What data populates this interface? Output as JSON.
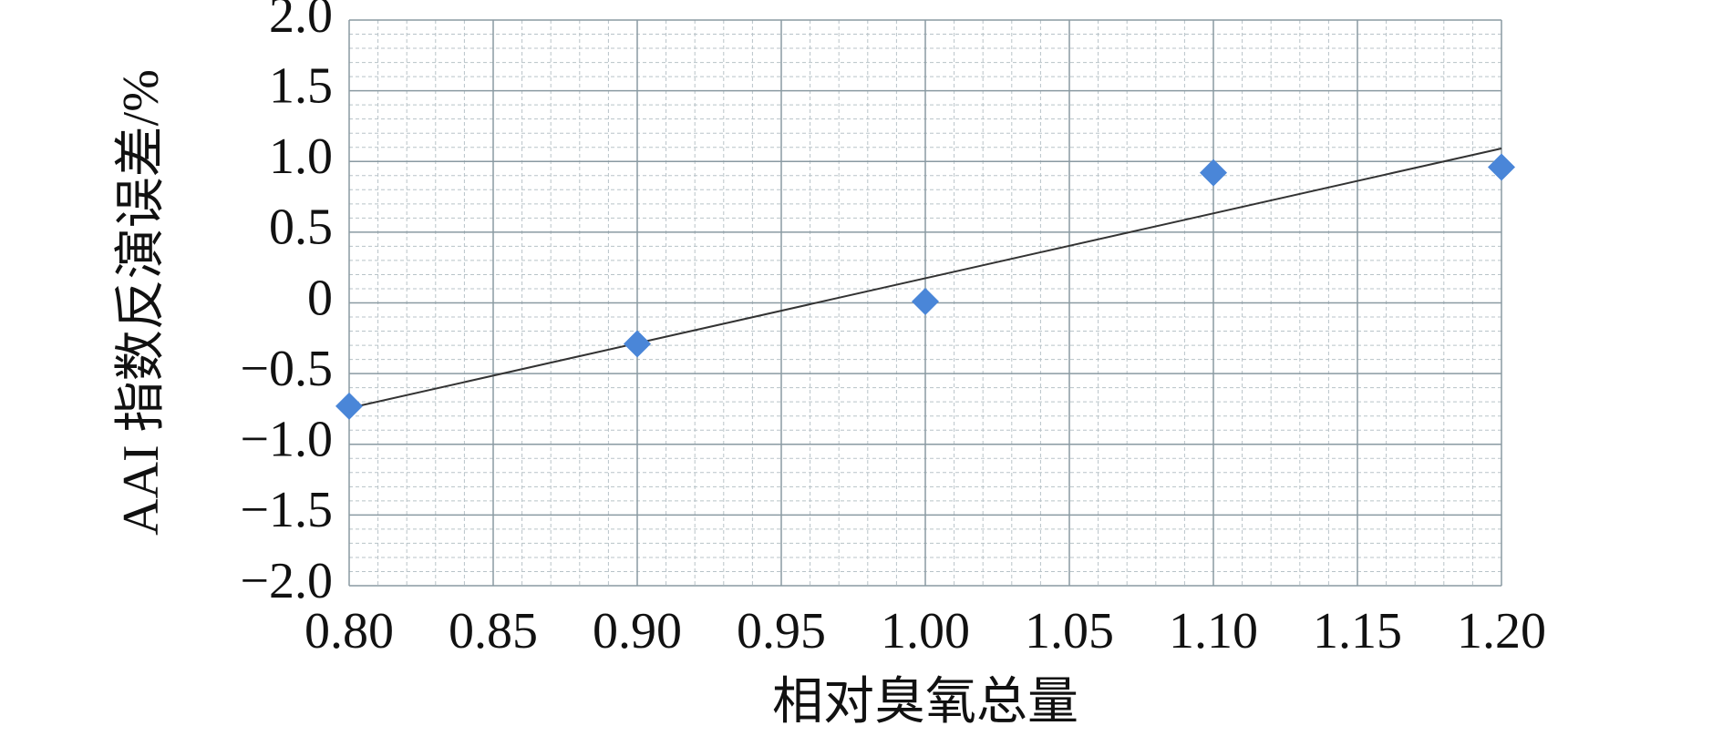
{
  "chart_data": {
    "type": "scatter",
    "x_label": "相对臭氧总量",
    "y_label": "AAI 指数反演误差/%",
    "series": [
      {
        "color": "#4a86d8",
        "x": [
          0.8,
          0.9,
          1.0,
          1.1,
          1.2
        ],
        "values": [
          -0.73,
          -0.29,
          0.01,
          0.92,
          0.96
        ]
      }
    ],
    "trendline": {
      "color": "#333333",
      "x": [
        0.8,
        1.2
      ],
      "values": [
        -0.744,
        1.092
      ]
    },
    "xlim": [
      0.8,
      1.2
    ],
    "xticks": [
      {
        "value": 0.8,
        "label": "0.80"
      },
      {
        "value": 0.85,
        "label": "0.85"
      },
      {
        "value": 0.9,
        "label": "0.90"
      },
      {
        "value": 0.95,
        "label": "0.95"
      },
      {
        "value": 1.0,
        "label": "1.00"
      },
      {
        "value": 1.05,
        "label": "1.05"
      },
      {
        "value": 1.1,
        "label": "1.10"
      },
      {
        "value": 1.15,
        "label": "1.15"
      },
      {
        "value": 1.2,
        "label": "1.20"
      }
    ],
    "ylim": [
      -2,
      2
    ],
    "yticks": [
      {
        "value": 2,
        "label": "2.0"
      },
      {
        "value": 1.5,
        "label": "1.5"
      },
      {
        "value": 1,
        "label": "1.0"
      },
      0.5,
      0,
      {
        "value": -0.5,
        "label": "−0.5"
      },
      {
        "value": -1,
        "label": "−1.0"
      },
      {
        "value": -1.5,
        "label": "−1.5"
      },
      {
        "value": -2,
        "label": "−2.0"
      }
    ],
    "grid": true,
    "minor_divisions": 5
  }
}
